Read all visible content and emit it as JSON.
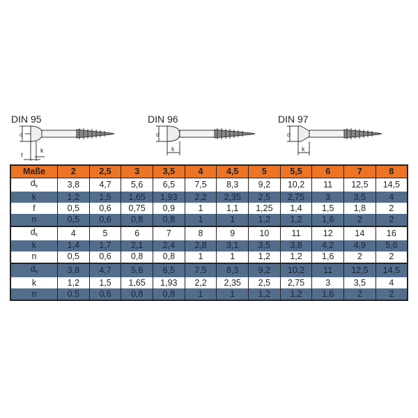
{
  "drawings": [
    {
      "label": "DIN 95",
      "dims": [
        "dk",
        "k",
        "f"
      ]
    },
    {
      "label": "DIN 96",
      "dims": [
        "dk",
        "k"
      ]
    },
    {
      "label": "DIN 97",
      "dims": [
        "dk",
        "k"
      ]
    }
  ],
  "colors": {
    "header": "#ec7424",
    "band": "#536d8d"
  },
  "table": {
    "headers": [
      "Maße",
      "2",
      "2,5",
      "3",
      "3,5",
      "4",
      "4,5",
      "5",
      "5,5",
      "6",
      "7",
      "8"
    ],
    "rows": [
      {
        "label": "d",
        "sub": "k",
        "values": [
          "3,8",
          "4,7",
          "5,6",
          "6,5",
          "7,5",
          "8,3",
          "9,2",
          "10,2",
          "11",
          "12,5",
          "14,5"
        ]
      },
      {
        "label": "k",
        "values": [
          "1,2",
          "1,5",
          "1,65",
          "1,93",
          "2,2",
          "2,35",
          "2,5",
          "2,75",
          "3",
          "3,5",
          "4"
        ]
      },
      {
        "label": "f",
        "values": [
          "0,5",
          "0,6",
          "0,75",
          "0,9",
          "1",
          "1,1",
          "1,25",
          "1,4",
          "1,5",
          "1,8",
          "2"
        ]
      },
      {
        "label": "n",
        "values": [
          "0,5",
          "0,6",
          "0,8",
          "0,8",
          "1",
          "1",
          "1,2",
          "1,2",
          "1,6",
          "2",
          "2"
        ]
      },
      {
        "label": "d",
        "sub": "k",
        "values": [
          "4",
          "5",
          "6",
          "7",
          "8",
          "9",
          "10",
          "11",
          "12",
          "14",
          "16"
        ]
      },
      {
        "label": "k",
        "values": [
          "1,4",
          "1,7",
          "2,1",
          "2,4",
          "2,8",
          "3,1",
          "3,5",
          "3,8",
          "4,2",
          "4,9",
          "5,6"
        ]
      },
      {
        "label": "n",
        "values": [
          "0,5",
          "0,6",
          "0,8",
          "0,8",
          "1",
          "1",
          "1,2",
          "1,2",
          "1,6",
          "2",
          "2"
        ]
      },
      {
        "label": "d",
        "sub": "k",
        "values": [
          "3,8",
          "4,7",
          "5,6",
          "6,5",
          "7,5",
          "8,3",
          "9,2",
          "10,2",
          "11",
          "12,5",
          "14,5"
        ]
      },
      {
        "label": "k",
        "values": [
          "1,2",
          "1,5",
          "1,65",
          "1,93",
          "2,2",
          "2,35",
          "2,5",
          "2,75",
          "3",
          "3,5",
          "4"
        ]
      },
      {
        "label": "n",
        "values": [
          "0,5",
          "0,6",
          "0,8",
          "0,8",
          "1",
          "1",
          "1,2",
          "1,2",
          "1,6",
          "2",
          "2"
        ]
      }
    ]
  }
}
